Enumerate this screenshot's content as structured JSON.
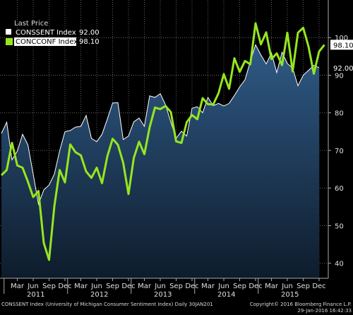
{
  "legend": {
    "title": "Last Price",
    "entries": [
      {
        "name": "CONSSENT Index",
        "value": "92.00",
        "color": "#ffffff"
      },
      {
        "name": "CONCCONF Index",
        "value": "98.10",
        "color": "#96e61e"
      }
    ]
  },
  "footer": {
    "left": "CONSSENT Index (University of Michigan Consumer Sentiment Index)  Daily 30JAN201",
    "right_line1": "Copyright© 2016 Bloomberg Finance L.P.",
    "right_line2": "29-Jan-2016 16:42:33"
  },
  "chart_data": {
    "type": "area",
    "title": "",
    "xlabel": "",
    "ylabel": "",
    "ylim": [
      36,
      110
    ],
    "y_ticks": [
      40,
      50,
      60,
      70,
      80,
      90,
      100
    ],
    "grid": true,
    "legend_position": "top-left",
    "start_month": "2010-12",
    "month_ticks": [
      "Mar",
      "Jun",
      "Sep",
      "Dec",
      "Mar",
      "Jun",
      "Sep",
      "Dec",
      "Mar",
      "Jun",
      "Sep",
      "Dec",
      "Mar",
      "Jun",
      "Sep",
      "Dec",
      "Mar",
      "Jun",
      "Sep",
      "Dec"
    ],
    "years": [
      "2011",
      "2012",
      "2013",
      "2014",
      "2015"
    ],
    "series": [
      {
        "name": "CONSSENT Index",
        "last_value": "92.00",
        "color": "#ffffff",
        "fill": "#1f3d5e",
        "values": [
          74.5,
          77.5,
          67.5,
          69.8,
          74.3,
          71.5,
          63.7,
          55.7,
          59.5,
          60.8,
          63.7,
          69.9,
          75.0,
          75.3,
          76.2,
          76.4,
          79.3,
          73.2,
          72.3,
          74.3,
          78.3,
          82.6,
          82.7,
          72.9,
          73.8,
          77.6,
          78.6,
          76.4,
          84.5,
          84.1,
          85.1,
          82.1,
          77.5,
          73.2,
          75.1,
          73.8,
          81.2,
          81.6,
          80.0,
          84.1,
          81.9,
          82.5,
          81.8,
          82.5,
          84.6,
          86.9,
          88.8,
          93.6,
          98.1,
          95.4,
          93.0,
          95.9,
          90.7,
          96.1,
          93.1,
          91.9,
          87.2,
          90.0,
          91.3,
          92.6,
          92.0
        ]
      },
      {
        "name": "CONCCONF Index",
        "last_value": "98.10",
        "color": "#96e61e",
        "values": [
          63.4,
          64.8,
          72.0,
          66.0,
          65.4,
          61.7,
          57.6,
          59.2,
          45.4,
          40.9,
          55.2,
          64.8,
          61.5,
          71.6,
          69.5,
          68.7,
          64.4,
          62.7,
          65.4,
          61.3,
          68.4,
          73.1,
          71.5,
          66.7,
          58.4,
          68.0,
          72.3,
          69.0,
          76.2,
          81.4,
          81.0,
          81.8,
          80.2,
          72.4,
          72.0,
          77.5,
          79.4,
          78.3,
          83.9,
          82.3,
          82.2,
          85.2,
          90.3,
          86.4,
          94.5,
          90.9,
          93.8,
          92.9,
          103.8,
          98.2,
          101.4,
          94.3,
          95.8,
          92.7,
          101.3,
          91.0,
          101.3,
          102.6,
          97.6,
          90.4,
          96.3,
          98.1
        ]
      }
    ]
  }
}
